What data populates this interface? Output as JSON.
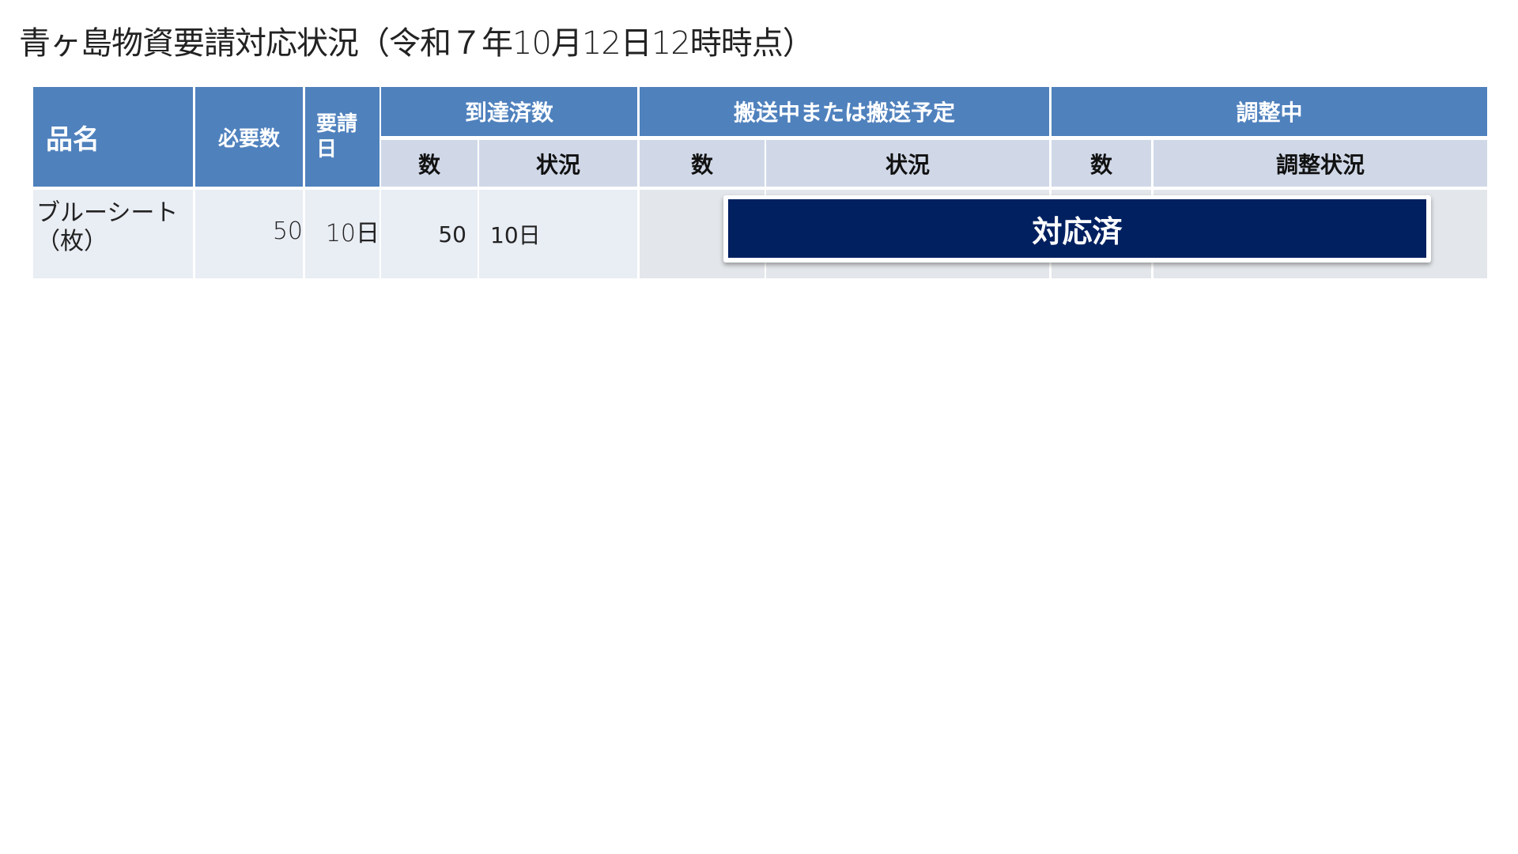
{
  "title": "青ヶ島物資要請対応状況（令和７年10月12日12時時点）",
  "table": {
    "headers": {
      "item_name": "品名",
      "required": "必要数",
      "request_date": "要請日",
      "arrived": "到達済数",
      "in_transit": "搬送中または搬送予定",
      "adjusting": "調整中"
    },
    "subheaders": {
      "arrived_count": "数",
      "arrived_status": "状況",
      "transit_count": "数",
      "transit_status": "状況",
      "adjusting_count": "数",
      "adjusting_status": "調整状況"
    },
    "rows": [
      {
        "item_name": "ブルーシート（枚）",
        "required": "50",
        "request_date": "10日",
        "arrived_count": "50",
        "arrived_status": "10日",
        "transit_count": "",
        "transit_status": "",
        "adjusting_count": "",
        "adjusting_status": ""
      }
    ]
  },
  "banner": {
    "label": "対応済",
    "color": "#002060"
  },
  "colors": {
    "header": "#4f81bd",
    "subheader": "#d0d8e8",
    "row": "#e9edf4"
  }
}
